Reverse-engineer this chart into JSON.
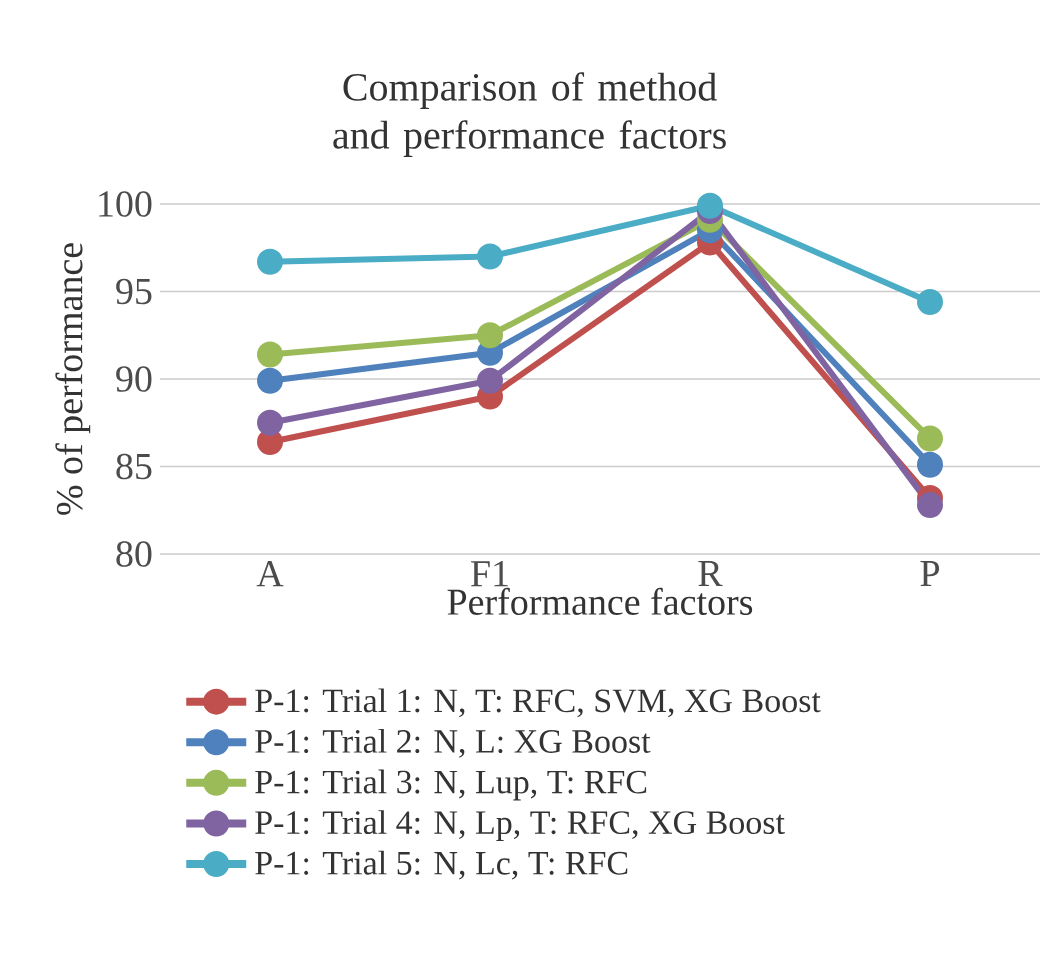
{
  "chart_data": {
    "type": "line",
    "title": "Comparison of method and performance factors",
    "xlabel": "Performance factors",
    "ylabel": "% of performance",
    "categories": [
      "A",
      "F1",
      "R",
      "P"
    ],
    "series": [
      {
        "name": "P-1: Trial 1: N, T: RFC, SVM, XG Boost",
        "color": "#c0504d",
        "values": [
          86.4,
          89.0,
          97.8,
          83.2
        ]
      },
      {
        "name": "P-1: Trial 2: N, L: XG Boost",
        "color": "#4f81bd",
        "values": [
          89.9,
          91.5,
          98.5,
          85.1
        ]
      },
      {
        "name": "P-1: Trial 3: N, Lup, T: RFC",
        "color": "#9bbb59",
        "values": [
          91.4,
          92.5,
          99.1,
          86.6
        ]
      },
      {
        "name": "P-1: Trial 4: N, Lp, T: RFC, XG Boost",
        "color": "#8064a2",
        "values": [
          87.5,
          89.9,
          99.6,
          82.8
        ]
      },
      {
        "name": "P-1: Trial 5: N, Lc, T: RFC",
        "color": "#4bacc6",
        "values": [
          96.7,
          97.0,
          99.9,
          94.4
        ]
      }
    ],
    "ylim": [
      80,
      100
    ],
    "yticks": [
      80,
      85,
      90,
      95,
      100
    ],
    "grid": "y",
    "legend": "bottom",
    "marker": "circle",
    "line_style": "solid"
  }
}
